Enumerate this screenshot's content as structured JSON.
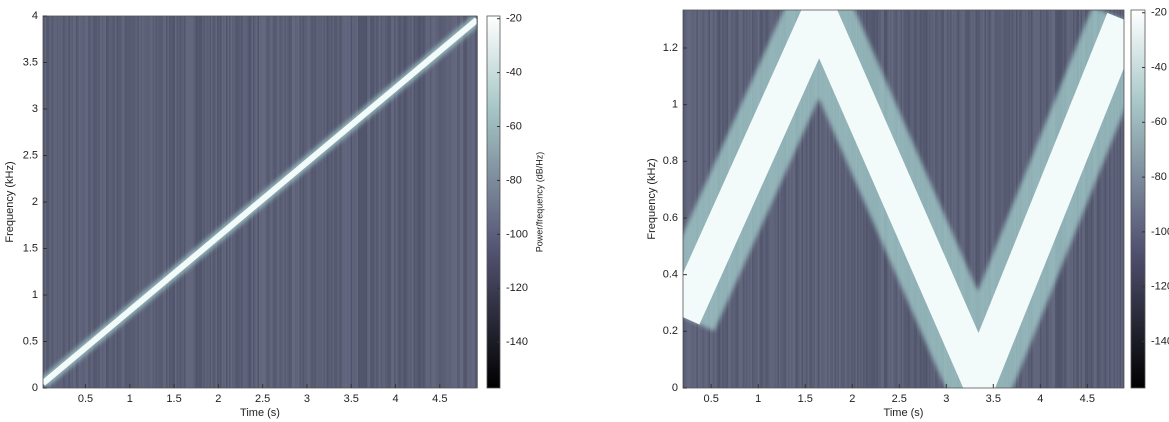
{
  "chart_data": [
    {
      "type": "spectrogram",
      "xlabel": "Time (s)",
      "ylabel": "Frequency (kHz)",
      "xlim": [
        0.02,
        4.92
      ],
      "ylim": [
        0,
        4
      ],
      "xticks": [
        0.5,
        1,
        1.5,
        2,
        2.5,
        3,
        3.5,
        4,
        4.5
      ],
      "yticks": [
        0,
        0.5,
        1,
        1.5,
        2,
        2.5,
        3,
        3.5,
        4
      ],
      "x": [
        0.02,
        4.92
      ],
      "values": [
        0.05,
        3.96
      ],
      "color": "#f2fbfa",
      "colormap": "bone",
      "colorbar": {
        "label": "Power/frequency (dB/Hz)",
        "lim": [
          -157,
          -19
        ],
        "ticks": [
          -20,
          -40,
          -60,
          -80,
          -100,
          -120,
          -140
        ]
      }
    },
    {
      "type": "spectrogram",
      "xlabel": "Time (s)",
      "ylabel": "Frequency (kHz)",
      "xlim": [
        0.2,
        4.89
      ],
      "ylim": [
        0,
        1.334
      ],
      "xticks": [
        0.5,
        1,
        1.5,
        2,
        2.5,
        3,
        3.5,
        4,
        4.5
      ],
      "yticks": [
        0,
        0.2,
        0.4,
        0.6,
        0.8,
        1,
        1.2
      ],
      "x": [
        0.2,
        1.65,
        3.35,
        4.89
      ],
      "values": [
        0.25,
        1.32,
        0.03,
        1.3
      ],
      "color": "#f2fbfa",
      "colormap": "bone",
      "colorbar": {
        "lim": [
          -157,
          -19
        ],
        "ticks": [
          -20,
          -40,
          -60,
          -80,
          -100,
          -120,
          -140
        ]
      }
    }
  ]
}
